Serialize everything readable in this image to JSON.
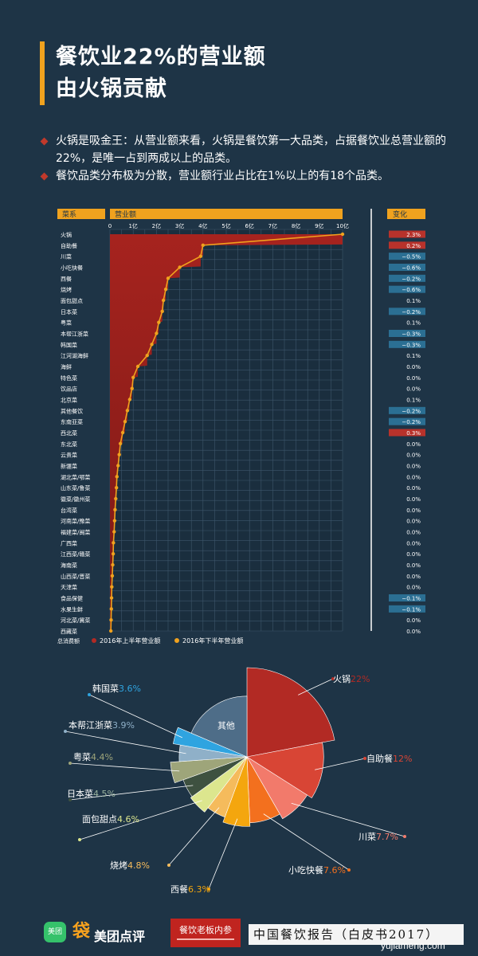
{
  "title": {
    "line1": "餐饮业22%的营业额",
    "line2": "由火锅贡献"
  },
  "bullets": [
    "火锅是吸金王：从营业额来看，火锅是餐饮第一大品类，占据餐饮业总营业额的22%，是唯一占到两成以上的品类。",
    "餐饮品类分布极为分散，营业额行业占比在1%以上的有18个品类。"
  ],
  "chart_data": [
    {
      "type": "area",
      "headers": {
        "category": "菜系",
        "revenue": "营业额",
        "change": "变化"
      },
      "x_ticks": [
        "0",
        "1亿",
        "2亿",
        "3亿",
        "4亿",
        "5亿",
        "6亿",
        "7亿",
        "8亿",
        "9亿",
        "10亿"
      ],
      "xlim": [
        0,
        10
      ],
      "categories": [
        "火锅",
        "自助餐",
        "川菜",
        "小吃快餐",
        "西餐",
        "烧烤",
        "面包甜点",
        "日本菜",
        "粤菜",
        "本帮江浙菜",
        "韩国菜",
        "江河湖海鲜",
        "海鲜",
        "特色菜",
        "饮品店",
        "北京菜",
        "其他餐饮",
        "东南亚菜",
        "西北菜",
        "东北菜",
        "云贵菜",
        "新疆菜",
        "湖北菜/鄂菜",
        "山东菜/鲁菜",
        "徽菜/徽州菜",
        "台湾菜",
        "河南菜/豫菜",
        "福建菜/闽菜",
        "广西菜",
        "江西菜/赣菜",
        "海南菜",
        "山西菜/晋菜",
        "天津菜",
        "食品保健",
        "水果生鲜",
        "河北菜/冀菜",
        "西藏菜"
      ],
      "series": [
        {
          "name": "2016年上半年营业额",
          "color": "#b22a24",
          "values": [
            10.0,
            4.0,
            3.9,
            3.0,
            2.5,
            2.4,
            2.3,
            2.25,
            2.1,
            2.0,
            1.8,
            1.6,
            1.2,
            1.0,
            0.95,
            0.85,
            0.75,
            0.65,
            0.55,
            0.45,
            0.4,
            0.35,
            0.3,
            0.28,
            0.25,
            0.22,
            0.2,
            0.18,
            0.15,
            0.14,
            0.12,
            0.1,
            0.08,
            0.07,
            0.06,
            0.05,
            0.04
          ]
        },
        {
          "name": "2016年下半年营业额",
          "color": "#f0a21e",
          "values": [
            10.0,
            4.0,
            3.9,
            3.0,
            2.5,
            2.4,
            2.3,
            2.25,
            2.1,
            2.0,
            1.8,
            1.6,
            1.2,
            1.0,
            0.95,
            0.85,
            0.75,
            0.65,
            0.55,
            0.45,
            0.4,
            0.35,
            0.3,
            0.28,
            0.25,
            0.22,
            0.2,
            0.18,
            0.15,
            0.14,
            0.12,
            0.1,
            0.08,
            0.07,
            0.06,
            0.05,
            0.04
          ]
        }
      ],
      "changes": [
        "2.3%",
        "0.2%",
        "−0.5%",
        "−0.6%",
        "−0.2%",
        "−0.6%",
        "0.1%",
        "−0.2%",
        "0.1%",
        "−0.3%",
        "−0.3%",
        "0.1%",
        "0.0%",
        "0.0%",
        "0.0%",
        "0.1%",
        "−0.2%",
        "−0.2%",
        "0.3%",
        "0.0%",
        "0.0%",
        "0.0%",
        "0.0%",
        "0.0%",
        "0.0%",
        "0.0%",
        "0.0%",
        "0.0%",
        "0.0%",
        "0.0%",
        "0.0%",
        "0.0%",
        "0.0%",
        "−0.1%",
        "−0.1%",
        "0.0%",
        "0.0%"
      ],
      "legend": {
        "prefix": "总消费额",
        "items": [
          "2016年上半年营业额",
          "2016年下半年营业额"
        ]
      },
      "colors": {
        "positive": "#b8322b",
        "negative": "#2b6f93",
        "neutral": "transparent"
      }
    },
    {
      "type": "pie",
      "slices": [
        {
          "name": "火锅",
          "value": 22,
          "label": "22%",
          "color": "#b22a24",
          "radius": 1.0
        },
        {
          "name": "自助餐",
          "value": 12,
          "label": "12%",
          "color": "#d84535",
          "radius": 0.86
        },
        {
          "name": "川菜",
          "value": 7.7,
          "label": "7.7%",
          "color": "#f27a6b",
          "radius": 0.8
        },
        {
          "name": "小吃快餐",
          "value": 7.6,
          "label": "7.6%",
          "color": "#f3701e",
          "radius": 0.74
        },
        {
          "name": "西餐",
          "value": 6.3,
          "label": "6.3%",
          "color": "#f4a60e",
          "radius": 0.78
        },
        {
          "name": "烧烤",
          "value": 4.8,
          "label": "4.8%",
          "color": "#f5bb5c",
          "radius": 0.72
        },
        {
          "name": "面包甜点",
          "value": 4.6,
          "label": "4.6%",
          "color": "#dce68e",
          "radius": 0.78
        },
        {
          "name": "日本菜",
          "value": 4.5,
          "label": "4.5%",
          "color": "#3e5140",
          "radius": 0.76
        },
        {
          "name": "粤菜",
          "value": 4.4,
          "label": "4.4%",
          "color": "#9ea57a",
          "radius": 0.86
        },
        {
          "name": "本帮江浙菜",
          "value": 3.9,
          "label": "3.9%",
          "color": "#8fb0c8",
          "radius": 0.76
        },
        {
          "name": "韩国菜",
          "value": 3.6,
          "label": "3.6%",
          "color": "#2fa4e0",
          "radius": 0.84
        },
        {
          "name": "其他",
          "value": 18.6,
          "label": "",
          "color": "#4e6d88",
          "radius": 0.68
        }
      ]
    }
  ],
  "footer": {
    "brand_mark": "美团",
    "brand_glyph": "袋",
    "brand": "美团点评",
    "badge": "餐饮老板内参",
    "report": "中国餐饮报告（白皮书2017）",
    "watermark": "yujiameng.com"
  }
}
